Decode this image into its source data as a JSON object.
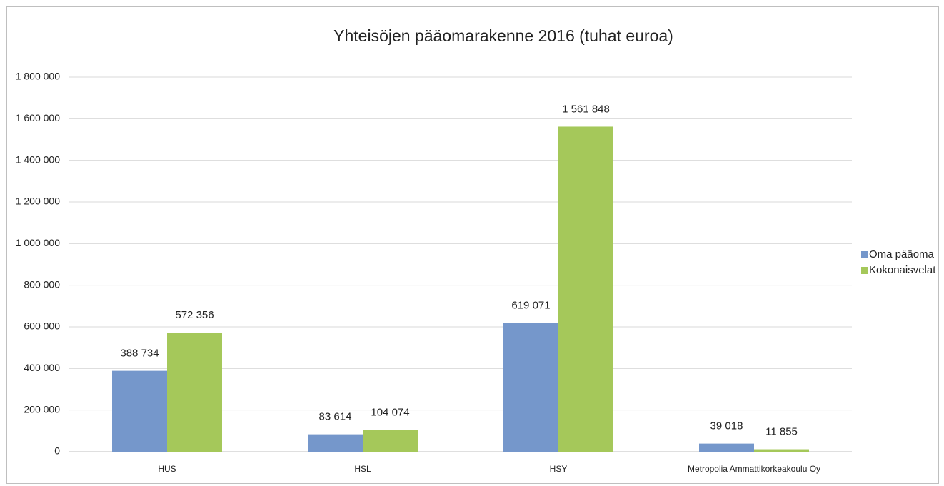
{
  "chart_data": {
    "type": "bar",
    "title": "Yhteisöjen pääomarakenne 2016 (tuhat euroa)",
    "categories": [
      "HUS",
      "HSL",
      "HSY",
      "Metropolia Ammattikorkeakoulu Oy"
    ],
    "series": [
      {
        "name": "Oma pääoma",
        "color": "#7597cb",
        "values": [
          388734,
          83614,
          619071,
          39018
        ],
        "value_labels": [
          "388 734",
          "83 614",
          "619 071",
          "39 018"
        ]
      },
      {
        "name": "Kokonaisvelat",
        "color": "#a5c85a",
        "values": [
          572356,
          104074,
          1561848,
          11855
        ],
        "value_labels": [
          "572 356",
          "104 074",
          "1 561 848",
          "11 855"
        ]
      }
    ],
    "ylim": [
      0,
      1800000
    ],
    "yticks": [
      0,
      {
        "value": 200000,
        "label": "200 000"
      },
      {
        "value": 400000,
        "label": "400 000"
      },
      {
        "value": 600000,
        "label": "600 000"
      },
      {
        "value": 800000,
        "label": "800 000"
      },
      {
        "value": 1000000,
        "label": "1 000 000"
      },
      {
        "value": 1200000,
        "label": "1 200 000"
      },
      {
        "value": 1400000,
        "label": "1 400 000"
      },
      {
        "value": 1600000,
        "label": "1 600 000"
      },
      {
        "value": 1800000,
        "label": "1 800 000"
      }
    ],
    "grid": true,
    "legend": "right"
  }
}
